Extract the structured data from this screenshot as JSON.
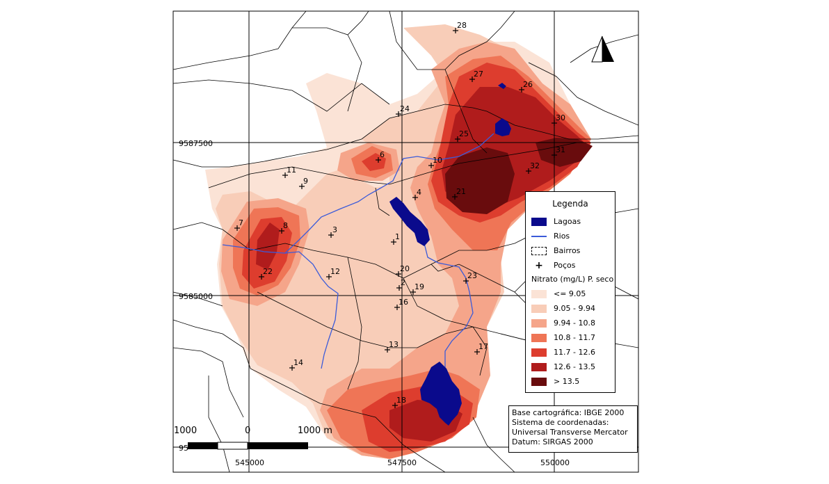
{
  "legend": {
    "title": "Legenda",
    "items": [
      {
        "label": "Lagoas",
        "kind": "fill",
        "color": "#0a0a8c"
      },
      {
        "label": "Rios",
        "kind": "line",
        "color": "#3b5bd9"
      },
      {
        "label": "Bairros",
        "kind": "dashed-box",
        "color": "#000000"
      },
      {
        "label": "Poços",
        "kind": "cross",
        "color": "#000000"
      }
    ],
    "classes_title": "Nitrato (mg/L) P. seco",
    "classes": [
      {
        "label": "<= 9.05",
        "color": "#fbe3d6"
      },
      {
        "label": "9.05 - 9.94",
        "color": "#f8cdb8"
      },
      {
        "label": "9.94 - 10.8",
        "color": "#f5a58a"
      },
      {
        "label": "10.8 - 11.7",
        "color": "#ef7556"
      },
      {
        "label": "11.7 - 12.6",
        "color": "#dd3d2e"
      },
      {
        "label": "12.6 - 13.5",
        "color": "#b01c1c"
      },
      {
        "label": "> 13.5",
        "color": "#690c0d"
      }
    ]
  },
  "credits": [
    "Base cartográfica: IBGE 2000",
    "Sistema de coordenadas:",
    "Universal Transverse Mercator",
    "Datum: SIRGAS 2000"
  ],
  "grid": {
    "y_labels": [
      "9587500",
      "9585000"
    ],
    "x_labels": [
      "545000",
      "547500",
      "550000"
    ],
    "bottom_left_fragment": "95"
  },
  "scale_bar": {
    "labels": [
      "1000",
      "0",
      "1000 m"
    ]
  },
  "wells": [
    {
      "id": "1"
    },
    {
      "id": "2"
    },
    {
      "id": "3"
    },
    {
      "id": "4"
    },
    {
      "id": "6"
    },
    {
      "id": "7"
    },
    {
      "id": "8"
    },
    {
      "id": "9"
    },
    {
      "id": "10"
    },
    {
      "id": "11"
    },
    {
      "id": "12"
    },
    {
      "id": "13"
    },
    {
      "id": "14"
    },
    {
      "id": "16"
    },
    {
      "id": "17"
    },
    {
      "id": "18"
    },
    {
      "id": "19"
    },
    {
      "id": "20"
    },
    {
      "id": "21"
    },
    {
      "id": "22"
    },
    {
      "id": "23"
    },
    {
      "id": "24"
    },
    {
      "id": "25"
    },
    {
      "id": "26"
    },
    {
      "id": "27"
    },
    {
      "id": "28"
    },
    {
      "id": "30"
    },
    {
      "id": "31"
    },
    {
      "id": "32"
    }
  ],
  "north_arrow": "north-arrow-icon"
}
